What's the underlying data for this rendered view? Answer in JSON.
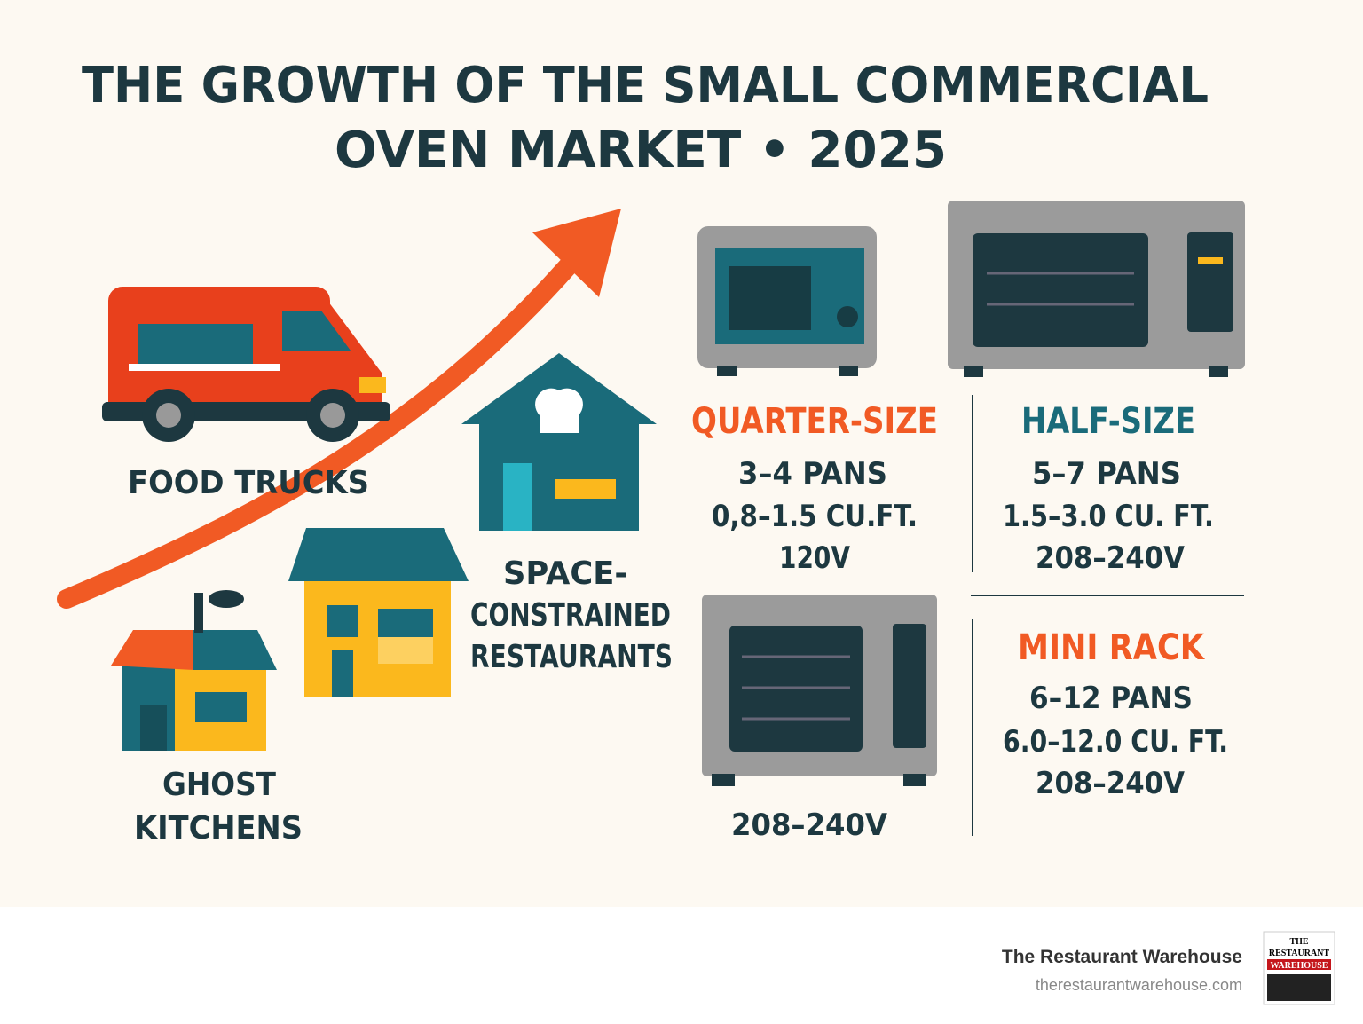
{
  "title": {
    "lines": [
      "THE GROWTH OF THE SMALL COMMERCIAL",
      "OVEN MARKET • 2025"
    ]
  },
  "segments": [
    {
      "lines": [
        "FOOD TRUCKS"
      ]
    },
    {
      "lines": [
        "GHOST",
        "KITCHENS"
      ]
    },
    {
      "lines": [
        "SPACE-",
        "CONSTRAINED",
        "RESTAURANTS"
      ]
    }
  ],
  "ovens": [
    {
      "name": "QUARTER-SIZE",
      "specs": [
        "3–4 PANS",
        "0,8–1.5 CU.FT.",
        "120V"
      ]
    },
    {
      "name": "HALF-SIZE",
      "specs": [
        "5–7 PANS",
        "1.5–3.0 CU. FT.",
        "208–240V"
      ]
    },
    {
      "name": "MINI RACK",
      "specs": [
        "6–12 PANS",
        "6.0–12.0 CU. FT.",
        "208–240V"
      ]
    }
  ],
  "oven_caption": "208–240V",
  "footer": {
    "brand": "The Restaurant Warehouse",
    "url": "therestaurantwarehouse.com",
    "logo": [
      "THE",
      "RESTAURANT",
      "WAREHOUSE"
    ]
  }
}
